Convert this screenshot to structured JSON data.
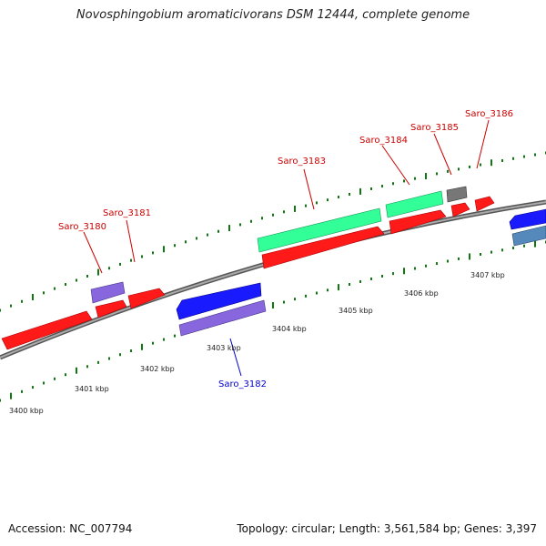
{
  "title": "Novosphingobium aromaticivorans DSM 12444, complete genome",
  "footer": {
    "accession": "Accession: NC_007794",
    "summary": "Topology: circular; Length: 3,561,584 bp; Genes: 3,397"
  },
  "colors": {
    "forward_gene": "#ff1a1a",
    "reverse_gene": "#1a1aff",
    "rna_gene": "#33ff99",
    "regulatory": "#8866dd",
    "other": "#777777",
    "steelblue": "#5588bb",
    "tick": "#117711",
    "backbone": "#888888",
    "forward_label": "#cc0000",
    "reverse_label": "#0000cc"
  },
  "gene_labels": [
    {
      "text": "Saro_3180",
      "strand": "forward"
    },
    {
      "text": "Saro_3181",
      "strand": "forward"
    },
    {
      "text": "Saro_3182",
      "strand": "reverse"
    },
    {
      "text": "Saro_3183",
      "strand": "forward"
    },
    {
      "text": "Saro_3184",
      "strand": "forward"
    },
    {
      "text": "Saro_3185",
      "strand": "forward"
    },
    {
      "text": "Saro_3186",
      "strand": "forward"
    }
  ],
  "kbp_labels": [
    "3400 kbp",
    "3401 kbp",
    "3402 kbp",
    "3403 kbp",
    "3404 kbp",
    "3405 kbp",
    "3406 kbp",
    "3407 kbp"
  ]
}
